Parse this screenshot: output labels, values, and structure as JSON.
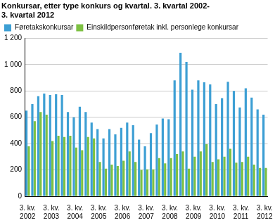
{
  "chart_data": {
    "type": "bar",
    "title": [
      "Konkursar, etter type konkurs og kvartal. 3. kvartal 2002-",
      "3. kvartal 2012"
    ],
    "categories": [
      "3. kv. 2002",
      null,
      null,
      null,
      "3. kv. 2003",
      null,
      null,
      null,
      "3. kv. 2004",
      null,
      null,
      null,
      "3. kv. 2005",
      null,
      null,
      null,
      "3. kv. 2006",
      null,
      null,
      null,
      "3. kv. 2007",
      null,
      null,
      null,
      "3. kv. 2008",
      null,
      null,
      null,
      "3. kv. 2009",
      null,
      null,
      null,
      "3. kv. 2010",
      null,
      null,
      null,
      "3. kv. 2011",
      null,
      null,
      null,
      "3. kv. 2012"
    ],
    "series": [
      {
        "name": "Føretakskonkursar",
        "color": "#3d9fd4",
        "values": [
          650,
          700,
          760,
          780,
          770,
          775,
          770,
          640,
          600,
          680,
          640,
          560,
          510,
          440,
          510,
          470,
          520,
          560,
          540,
          430,
          380,
          480,
          545,
          590,
          585,
          880,
          1090,
          1020,
          810,
          880,
          865,
          850,
          700,
          745,
          870,
          800,
          675,
          820,
          750,
          660,
          620
        ]
      },
      {
        "name": "Einskildpersonføretak inkl. personlege konkursar",
        "color": "#7dc142",
        "values": [
          380,
          570,
          640,
          620,
          420,
          460,
          450,
          460,
          370,
          350,
          450,
          440,
          260,
          210,
          240,
          230,
          270,
          340,
          260,
          200,
          205,
          205,
          290,
          250,
          290,
          320,
          340,
          210,
          300,
          340,
          395,
          260,
          280,
          300,
          360,
          255,
          260,
          300,
          240,
          215,
          215
        ]
      }
    ],
    "ylim": [
      0,
      1200
    ],
    "yticks": [
      0,
      200,
      400,
      600,
      800,
      {
        "value": 1000,
        "label": "1 000"
      },
      {
        "value": 1200,
        "label": "1 200"
      }
    ],
    "grid": true,
    "legend": "top-left"
  }
}
